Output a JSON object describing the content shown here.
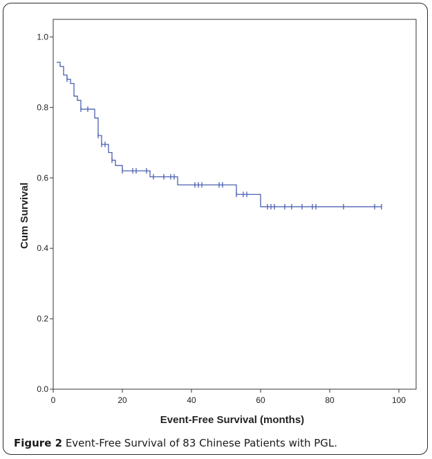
{
  "figure": {
    "label": "Figure 2",
    "caption": "Event-Free Survival of 83 Chinese Patients with PGL."
  },
  "chart_data": {
    "type": "line",
    "xlabel": "Event-Free Survival (months)",
    "ylabel": "Cum Survival",
    "xlim": [
      0,
      105
    ],
    "ylim": [
      0,
      1.05
    ],
    "xticks": [
      0,
      20,
      40,
      60,
      80,
      100
    ],
    "yticks": [
      0.0,
      0.2,
      0.4,
      0.6,
      0.8,
      1.0
    ],
    "xtick_labels": [
      "0",
      "20",
      "40",
      "60",
      "80",
      "100"
    ],
    "ytick_labels": [
      "0.0",
      "0.2",
      "0.4",
      "0.6",
      "0.8",
      "1.0"
    ],
    "grid": false,
    "line_color": "#4a5fb0",
    "step_curve": [
      [
        0,
        1.0
      ],
      [
        1,
        0.928
      ],
      [
        2,
        0.916
      ],
      [
        3,
        0.892
      ],
      [
        4,
        0.88
      ],
      [
        5,
        0.868
      ],
      [
        6,
        0.832
      ],
      [
        7,
        0.82
      ],
      [
        8,
        0.795
      ],
      [
        12,
        0.77
      ],
      [
        13,
        0.72
      ],
      [
        14,
        0.695
      ],
      [
        16,
        0.672
      ],
      [
        17,
        0.65
      ],
      [
        18,
        0.635
      ],
      [
        20,
        0.62
      ],
      [
        28,
        0.603
      ],
      [
        36,
        0.58
      ],
      [
        53,
        0.553
      ],
      [
        60,
        0.518
      ],
      [
        95,
        0.518
      ]
    ],
    "censored": [
      [
        4,
        0.88
      ],
      [
        8,
        0.795
      ],
      [
        10,
        0.795
      ],
      [
        13,
        0.72
      ],
      [
        14,
        0.695
      ],
      [
        15,
        0.695
      ],
      [
        17,
        0.65
      ],
      [
        20,
        0.62
      ],
      [
        23,
        0.62
      ],
      [
        24,
        0.62
      ],
      [
        27,
        0.62
      ],
      [
        29,
        0.603
      ],
      [
        32,
        0.603
      ],
      [
        34,
        0.603
      ],
      [
        35,
        0.603
      ],
      [
        41,
        0.58
      ],
      [
        42,
        0.58
      ],
      [
        43,
        0.58
      ],
      [
        48,
        0.58
      ],
      [
        49,
        0.58
      ],
      [
        53,
        0.553
      ],
      [
        55,
        0.553
      ],
      [
        56,
        0.553
      ],
      [
        62,
        0.518
      ],
      [
        63,
        0.518
      ],
      [
        64,
        0.518
      ],
      [
        67,
        0.518
      ],
      [
        69,
        0.518
      ],
      [
        72,
        0.518
      ],
      [
        75,
        0.518
      ],
      [
        76,
        0.518
      ],
      [
        84,
        0.518
      ],
      [
        93,
        0.518
      ],
      [
        95,
        0.518
      ]
    ]
  }
}
